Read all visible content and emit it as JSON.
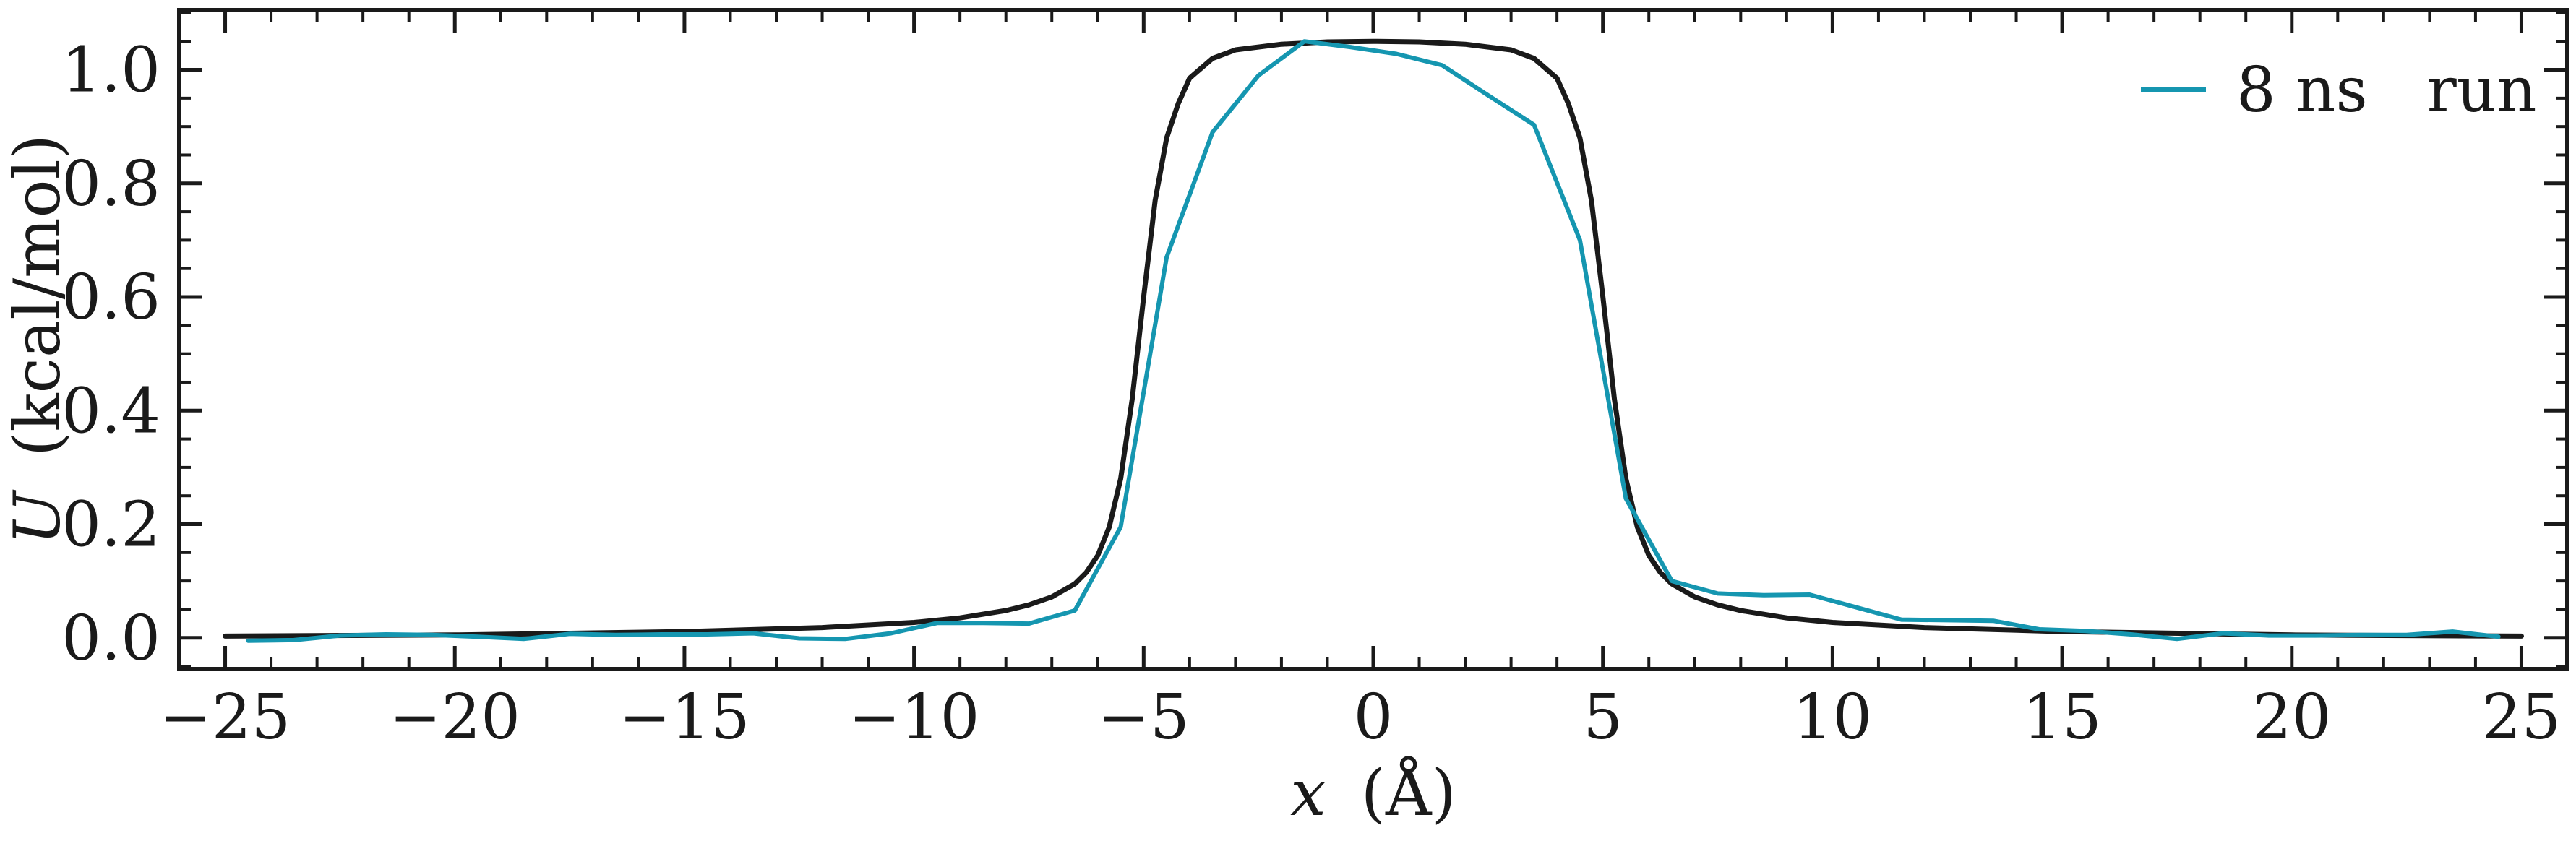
{
  "chart_data": {
    "type": "line",
    "xlabel_var": "x",
    "xlabel_unit": "(Å)",
    "ylabel_var": "U",
    "ylabel_unit": "(kcal/mol)",
    "xlim": [
      -26,
      26
    ],
    "ylim": [
      -0.055,
      1.105
    ],
    "x_ticks": [
      -25,
      -20,
      -15,
      -10,
      -5,
      0,
      5,
      10,
      15,
      20,
      25
    ],
    "x_tick_labels": [
      "−25",
      "−20",
      "−15",
      "−10",
      "−5",
      "0",
      "5",
      "10",
      "15",
      "20",
      "25"
    ],
    "y_ticks": [
      0.0,
      0.2,
      0.4,
      0.6,
      0.8,
      1.0
    ],
    "y_tick_labels": [
      "0.0",
      "0.2",
      "0.4",
      "0.6",
      "0.8",
      "1.0"
    ],
    "x_minor_step": 1,
    "y_minor_step": 0.05,
    "grid": false,
    "legend_position": "top-right",
    "colors": {
      "model": "#1a1a1a",
      "run": "#1596b0",
      "axis": "#1a1a1a"
    },
    "series": [
      {
        "key": "model",
        "x": [
          -25,
          -20,
          -15,
          -12,
          -10,
          -9,
          -8,
          -7.5,
          -7,
          -6.5,
          -6.25,
          -6,
          -5.75,
          -5.5,
          -5.25,
          -5,
          -4.75,
          -4.5,
          -4.25,
          -4,
          -3.5,
          -3,
          -2,
          -1,
          0,
          1,
          2,
          3,
          3.5,
          4,
          4.25,
          4.5,
          4.75,
          5,
          5.25,
          5.5,
          5.75,
          6,
          6.25,
          6.5,
          7,
          7.5,
          8,
          9,
          10,
          12,
          15,
          20,
          25
        ],
        "y": [
          0.003,
          0.005,
          0.011,
          0.018,
          0.027,
          0.035,
          0.048,
          0.058,
          0.072,
          0.095,
          0.115,
          0.145,
          0.195,
          0.28,
          0.42,
          0.6,
          0.77,
          0.88,
          0.94,
          0.985,
          1.02,
          1.035,
          1.045,
          1.049,
          1.05,
          1.049,
          1.045,
          1.035,
          1.02,
          0.985,
          0.94,
          0.88,
          0.77,
          0.6,
          0.42,
          0.28,
          0.195,
          0.145,
          0.115,
          0.095,
          0.072,
          0.058,
          0.048,
          0.035,
          0.027,
          0.018,
          0.011,
          0.005,
          0.003
        ]
      },
      {
        "key": "run",
        "name": "8 ns run",
        "x": [
          -24.5,
          -23.5,
          -22.5,
          -21.5,
          -20.5,
          -19.5,
          -18.5,
          -17.5,
          -16.5,
          -15.5,
          -14.5,
          -13.5,
          -12.5,
          -11.5,
          -10.5,
          -9.5,
          -8.5,
          -7.5,
          -6.5,
          -5.5,
          -4.5,
          -3.5,
          -2.5,
          -1.5,
          -0.5,
          0.5,
          1.5,
          2.5,
          3.5,
          4.5,
          5.5,
          6.5,
          7.5,
          8.5,
          9.5,
          10.5,
          11.5,
          12.5,
          13.5,
          14.5,
          15.5,
          16.5,
          17.5,
          18.5,
          19.5,
          20.5,
          21.5,
          22.5,
          23.5,
          24.5
        ],
        "y": [
          -0.005,
          -0.004,
          0.004,
          0.006,
          0.005,
          0.002,
          -0.002,
          0.007,
          0.005,
          0.006,
          0.006,
          0.008,
          -0.001,
          -0.002,
          0.008,
          0.026,
          0.026,
          0.025,
          0.048,
          0.195,
          0.67,
          0.89,
          0.99,
          1.05,
          1.04,
          1.028,
          1.008,
          0.955,
          0.903,
          0.7,
          0.245,
          0.1,
          0.078,
          0.075,
          0.076,
          0.054,
          0.032,
          0.031,
          0.03,
          0.015,
          0.012,
          0.006,
          -0.002,
          0.008,
          0.004,
          0.004,
          0.005,
          0.005,
          0.011,
          0.002
        ]
      }
    ],
    "legend": {
      "label": "8 ns   run"
    }
  }
}
